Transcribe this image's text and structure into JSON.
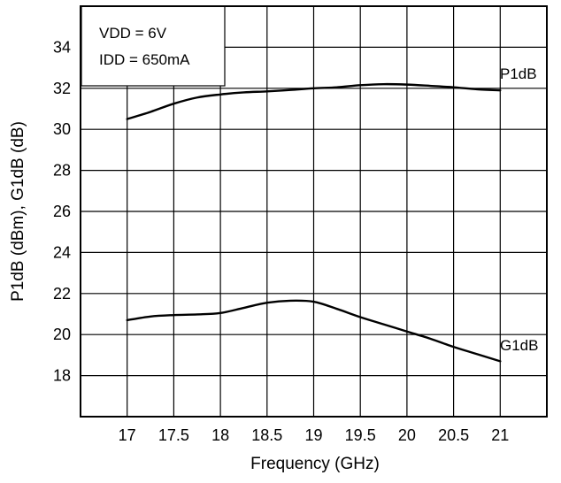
{
  "chart_data": {
    "type": "line",
    "title": "",
    "xlabel": "Frequency (GHz)",
    "ylabel": "P1dB (dBm), G1dB (dB)",
    "xlim": [
      16.5,
      21.5
    ],
    "ylim": [
      16,
      36
    ],
    "x_ticks": [
      "17",
      "17.5",
      "18",
      "18.5",
      "19",
      "19.5",
      "20",
      "20.5",
      "21"
    ],
    "y_ticks": [
      "18",
      "20",
      "22",
      "24",
      "26",
      "28",
      "30",
      "32",
      "34"
    ],
    "grid": true,
    "annotations": [
      "VDD = 6V",
      "IDD = 650mA"
    ],
    "series": [
      {
        "name": "P1dB",
        "x": [
          17,
          17.25,
          17.5,
          17.75,
          18,
          18.25,
          18.5,
          18.75,
          19,
          19.25,
          19.5,
          19.75,
          20,
          20.25,
          20.5,
          20.75,
          21
        ],
        "y": [
          30.5,
          30.85,
          31.25,
          31.55,
          31.7,
          31.8,
          31.85,
          31.92,
          32.0,
          32.05,
          32.15,
          32.2,
          32.18,
          32.12,
          32.05,
          31.95,
          31.9
        ]
      },
      {
        "name": "G1dB",
        "x": [
          17,
          17.25,
          17.5,
          17.75,
          18,
          18.25,
          18.5,
          18.75,
          19,
          19.25,
          19.5,
          19.75,
          20,
          20.25,
          20.5,
          20.75,
          21
        ],
        "y": [
          20.7,
          20.88,
          20.95,
          20.98,
          21.05,
          21.3,
          21.55,
          21.65,
          21.6,
          21.25,
          20.85,
          20.5,
          20.15,
          19.8,
          19.4,
          19.05,
          18.7
        ]
      }
    ]
  }
}
